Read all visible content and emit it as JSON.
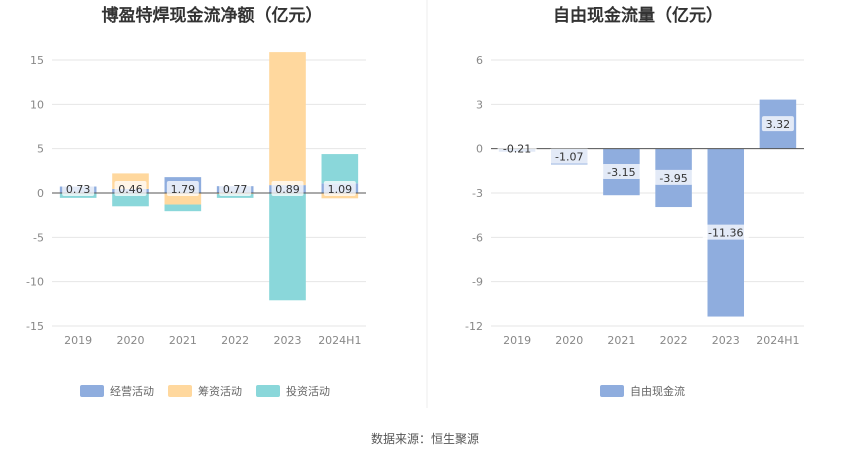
{
  "source_text": "数据来源：恒生聚源",
  "chart_data": [
    {
      "type": "bar",
      "title": "博盈特焊现金流净额（亿元）",
      "categories": [
        "2019",
        "2020",
        "2021",
        "2022",
        "2023",
        "2024H1"
      ],
      "ylim": [
        -15,
        15
      ],
      "yticks": [
        15,
        10,
        5,
        0,
        -5,
        -10,
        -15
      ],
      "grid": true,
      "legend": "bottom",
      "series": [
        {
          "name": "经营活动",
          "color": "#8fadde",
          "values": [
            0.73,
            0.46,
            1.79,
            0.77,
            0.89,
            1.09
          ]
        },
        {
          "name": "筹资活动",
          "color": "#ffd89e",
          "values": [
            0.0,
            1.75,
            -1.3,
            -0.1,
            15.0,
            -0.6
          ]
        },
        {
          "name": "投资活动",
          "color": "#8ad7da",
          "values": [
            -0.55,
            -1.5,
            -0.75,
            -0.45,
            -12.1,
            3.3
          ]
        }
      ],
      "data_labels": [
        "0.73",
        "0.46",
        "1.79",
        "0.77",
        "0.89",
        "1.09"
      ]
    },
    {
      "type": "bar",
      "title": "自由现金流量（亿元）",
      "categories": [
        "2019",
        "2020",
        "2021",
        "2022",
        "2023",
        "2024H1"
      ],
      "ylim": [
        -12,
        6
      ],
      "yticks": [
        6,
        3,
        0,
        -3,
        -6,
        -9,
        -12
      ],
      "grid": true,
      "legend": "bottom",
      "series": [
        {
          "name": "自由现金流",
          "color": "#8fadde",
          "values": [
            -0.21,
            -1.07,
            -3.15,
            -3.95,
            -11.36,
            3.32
          ]
        }
      ],
      "data_labels": [
        "-0.21",
        "-1.07",
        "-3.15",
        "-3.95",
        "-11.36",
        "3.32"
      ]
    }
  ]
}
